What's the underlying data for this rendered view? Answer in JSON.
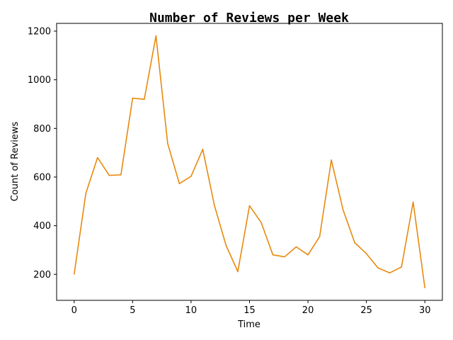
{
  "chart_data": {
    "type": "line",
    "title": "Number of Reviews per Week",
    "xlabel": "Time",
    "ylabel": "Count of Reviews",
    "xlim": [
      -1.5,
      31.5
    ],
    "ylim": [
      93,
      1232
    ],
    "xticks": [
      0,
      5,
      10,
      15,
      20,
      25,
      30
    ],
    "yticks": [
      200,
      400,
      600,
      800,
      1000,
      1200
    ],
    "grid": false,
    "series": [
      {
        "color": "#e8890c",
        "x": [
          0,
          1,
          2,
          3,
          4,
          5,
          6,
          7,
          8,
          9,
          10,
          11,
          12,
          13,
          14,
          15,
          16,
          17,
          18,
          19,
          20,
          21,
          22,
          23,
          24,
          25,
          26,
          27,
          28,
          29,
          30
        ],
        "y": [
          201,
          533,
          680,
          607,
          609,
          924,
          920,
          1181,
          738,
          573,
          603,
          714,
          483,
          318,
          211,
          482,
          413,
          280,
          272,
          313,
          280,
          355,
          670,
          466,
          330,
          285,
          226,
          206,
          230,
          497,
          145
        ]
      }
    ]
  }
}
